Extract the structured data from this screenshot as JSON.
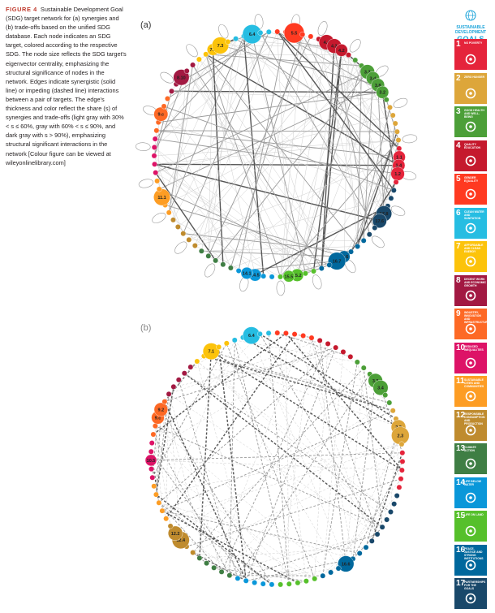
{
  "caption": {
    "label": "FIGURE 4",
    "text": "Sustainable Development Goal (SDG) target network for (a) synergies and (b) trade-offs based on the unified SDG database. Each node indicates an SDG target, colored according to the respective SDG. The node size reflects the SDG target's eigenvector centrality, emphasizing the structural significance of nodes in the network. Edges indicate synergistic (solid line) or impeding (dashed line) interactions between a pair of targets. The edge's thickness and color reflect the share (s) of synergies and trade-offs (light gray with 30% < s ≤ 60%, gray with 60% < s ≤ 90%, and dark gray with s > 90%), emphasizing structural significant interactions in the network [Colour figure can be viewed at wileyonlinelibrary.com]"
  },
  "panels": [
    {
      "label": "(a)",
      "big_nodes": [
        "4.3",
        "4.2",
        "4.4",
        "3.d",
        "3.8",
        "3.3",
        "3.2",
        "1.4",
        "1.2",
        "1.1",
        "17.8",
        "17.6",
        "16.6",
        "16.7",
        "15.2",
        "15.5",
        "14.5",
        "14.1",
        "11.1",
        "9.c",
        "8.10",
        "7.1",
        "7.3",
        "6.4",
        "5.5"
      ]
    },
    {
      "label": "(b)",
      "big_nodes": [
        "12.4",
        "12.2",
        "10.5",
        "9.c",
        "9.2",
        "16.6",
        "6.4",
        "3.3",
        "3.4",
        "2.2",
        "2.3",
        "7.1"
      ]
    }
  ],
  "legend": {
    "header_line1": "SUSTAINABLE",
    "header_line2": "DEVELOPMENT",
    "header_line3": "GOALS",
    "goals": [
      {
        "num": "1",
        "title": "No poverty",
        "color": "#e5243b",
        "icon": "family-icon"
      },
      {
        "num": "2",
        "title": "Zero hunger",
        "color": "#dda63a",
        "icon": "bowl-icon"
      },
      {
        "num": "3",
        "title": "Good health and well-being",
        "color": "#4c9f38",
        "icon": "heartbeat-icon"
      },
      {
        "num": "4",
        "title": "Quality education",
        "color": "#c5192d",
        "icon": "book-icon"
      },
      {
        "num": "5",
        "title": "Gender equality",
        "color": "#ff3a21",
        "icon": "gender-icon"
      },
      {
        "num": "6",
        "title": "Clean water and sanitation",
        "color": "#26bde2",
        "icon": "water-icon"
      },
      {
        "num": "7",
        "title": "Affordable and clean energy",
        "color": "#fcc30b",
        "icon": "sun-icon"
      },
      {
        "num": "8",
        "title": "Decent work and economic growth",
        "color": "#a21942",
        "icon": "growth-icon"
      },
      {
        "num": "9",
        "title": "Industry, innovation and infrastructure",
        "color": "#fd6925",
        "icon": "cubes-icon"
      },
      {
        "num": "10",
        "title": "Reduced inequalities",
        "color": "#dd1367",
        "icon": "equality-icon"
      },
      {
        "num": "11",
        "title": "Sustainable cities and communities",
        "color": "#fd9d24",
        "icon": "city-icon"
      },
      {
        "num": "12",
        "title": "Responsible consumption and production",
        "color": "#bf8b2e",
        "icon": "infinity-icon"
      },
      {
        "num": "13",
        "title": "Climate action",
        "color": "#3f7e44",
        "icon": "eye-icon"
      },
      {
        "num": "14",
        "title": "Life below water",
        "color": "#0a97d9",
        "icon": "fish-icon"
      },
      {
        "num": "15",
        "title": "Life on land",
        "color": "#56c02b",
        "icon": "tree-icon"
      },
      {
        "num": "16",
        "title": "Peace, justice and strong institutions",
        "color": "#00689d",
        "icon": "dove-icon"
      },
      {
        "num": "17",
        "title": "Partnerships for the goals",
        "color": "#19486a",
        "icon": "rings-icon"
      }
    ]
  }
}
